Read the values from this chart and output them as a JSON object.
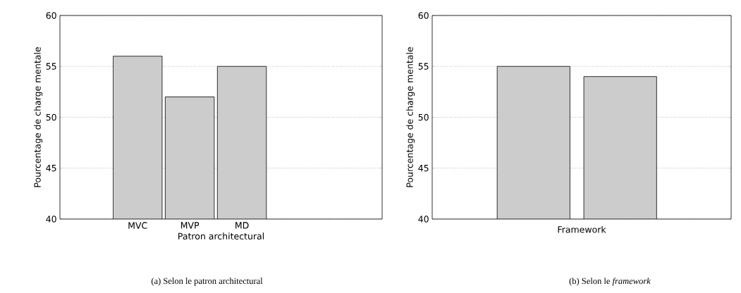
{
  "chart_data": [
    {
      "type": "bar",
      "categories": [
        "MVC",
        "MVP",
        "MD"
      ],
      "values": [
        56,
        52,
        55
      ],
      "color": "#cccccc",
      "xlabel": "Patron architectural",
      "ylabel": "Pourcentage de charge mentale",
      "ylim": [
        40,
        60
      ],
      "yticks": [
        40,
        45,
        50,
        55,
        60
      ],
      "grid": "y",
      "annotations": [
        "(a) Selon le patron architectural"
      ]
    },
    {
      "type": "bar",
      "categories": [
        null,
        null
      ],
      "values": [
        55,
        54
      ],
      "color": "#cccccc",
      "xlabel": "Framework",
      "ylabel": "Pourcentage de charge mentale",
      "ylim": [
        40,
        60
      ],
      "yticks": [
        40,
        45,
        50,
        55,
        60
      ],
      "grid": "y",
      "annotations": [
        "(b) Selon le *framework*"
      ]
    }
  ]
}
